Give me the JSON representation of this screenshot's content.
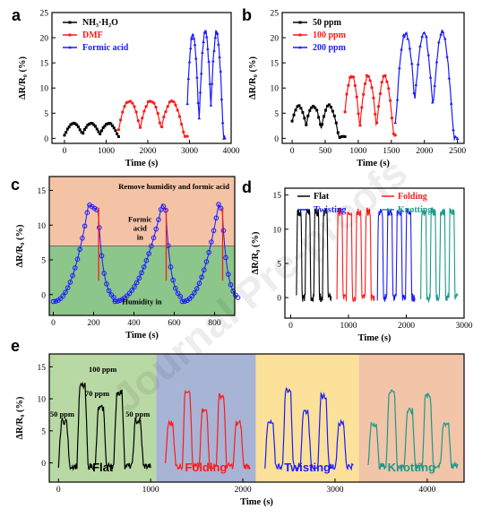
{
  "chart_data": [
    {
      "panel": "a",
      "type": "line",
      "xlabel": "Time (s)",
      "ylabel": "ΔR/R₀ (%)",
      "xlim": [
        -300,
        4000
      ],
      "ylim": [
        -1,
        25
      ],
      "xticks": [
        0,
        1000,
        2000,
        3000,
        4000
      ],
      "yticks": [
        0,
        5,
        10,
        15,
        20,
        25
      ],
      "series": [
        {
          "name": "NH₃·H₂O",
          "color": "#000000",
          "marker": "square",
          "x": [
            0,
            1300
          ],
          "peaks_x": [
            220,
            640,
            1060
          ],
          "peak_y": 3
        },
        {
          "name": "DMF",
          "color": "#ff1a1a",
          "marker": "circle",
          "x": [
            1300,
            2950
          ],
          "peaks_x": [
            1560,
            2070,
            2580
          ],
          "peak_y": 7.5
        },
        {
          "name": "Formic acid",
          "color": "#1a1aff",
          "marker": "triangle",
          "x": [
            2950,
            3850
          ],
          "peaks_x": [
            3080,
            3380,
            3650
          ],
          "peak_y": 21
        }
      ]
    },
    {
      "panel": "b",
      "type": "line",
      "xlabel": "Time (s)",
      "ylabel": "ΔR/R₀ (%)",
      "xlim": [
        -150,
        2600
      ],
      "ylim": [
        -1,
        25
      ],
      "xticks": [
        0,
        500,
        1000,
        1500,
        2000,
        2500
      ],
      "yticks": [
        0,
        5,
        10,
        15,
        20,
        25
      ],
      "series": [
        {
          "name": "50 ppm",
          "color": "#000000",
          "marker": "square",
          "x": [
            0,
            800
          ],
          "peaks_x": [
            100,
            320,
            560
          ],
          "peak_y": 6.5
        },
        {
          "name": "100 ppm",
          "color": "#ff1a1a",
          "marker": "circle",
          "x": [
            800,
            1560
          ],
          "peaks_x": [
            900,
            1150,
            1400
          ],
          "peak_y": 12.5
        },
        {
          "name": "200 ppm",
          "color": "#1a1aff",
          "marker": "triangle",
          "x": [
            1560,
            2500
          ],
          "peaks_x": [
            1720,
            1990,
            2270
          ],
          "peak_y": 21
        }
      ]
    },
    {
      "panel": "c",
      "type": "line",
      "xlabel": "Time (s)",
      "ylabel": "ΔR/R₀ (%)",
      "xlim": [
        -20,
        900
      ],
      "ylim": [
        -3,
        17
      ],
      "xticks": [
        0,
        200,
        400,
        600,
        800
      ],
      "yticks": [
        0,
        5,
        10,
        15
      ],
      "regions": [
        {
          "label": "Remove humidity and formic acid",
          "color": "#f4c3a5"
        },
        {
          "label": "Humidity in",
          "color": "#8cc68a"
        }
      ],
      "annotations": [
        "Remove humidity and formic acid",
        "Formic acid in",
        "Humidity in"
      ],
      "boundary_y": 7
    },
    {
      "panel": "d",
      "type": "line",
      "xlabel": "Time (s)",
      "ylabel": "ΔR/R₀ (%)",
      "xlim": [
        -100,
        3000
      ],
      "ylim": [
        -3,
        16
      ],
      "xticks": [
        0,
        1000,
        2000,
        3000
      ],
      "yticks": [
        0,
        5,
        10,
        15
      ],
      "series": [
        {
          "name": "Flat",
          "color": "#000000",
          "x": [
            100,
            700
          ]
        },
        {
          "name": "Folding",
          "color": "#ff1a1a",
          "x": [
            800,
            1450
          ]
        },
        {
          "name": "Twisting",
          "color": "#1a1aff",
          "x": [
            1500,
            2150
          ]
        },
        {
          "name": "Knotting",
          "color": "#1a9a8a",
          "x": [
            2250,
            2900
          ]
        }
      ],
      "peak_y": 12.5
    },
    {
      "panel": "e",
      "type": "line",
      "xlabel": "Time (s)",
      "ylabel": "ΔR/R₀ (%)",
      "xlim": [
        -100,
        4400
      ],
      "ylim": [
        -3,
        17
      ],
      "xticks": [
        0,
        1000,
        2000,
        3000,
        4000
      ],
      "yticks": [
        0,
        5,
        10,
        15
      ],
      "regions": [
        {
          "label": "Flat",
          "color": "#b9d9a4",
          "x": [
            -100,
            1060
          ]
        },
        {
          "label": "Folding",
          "color": "#a8b4d6",
          "x": [
            1060,
            2140
          ]
        },
        {
          "label": "Twisting",
          "color": "#fbe19a",
          "x": [
            2140,
            3260
          ]
        },
        {
          "label": "Knotting",
          "color": "#f2c4a8",
          "x": [
            3260,
            4400
          ]
        }
      ],
      "annotations": [
        "50 ppm",
        "100 ppm",
        "70 ppm",
        "50 ppm"
      ],
      "peak_values": [
        7,
        12.5,
        9,
        11.5,
        7
      ]
    }
  ],
  "watermark": "Journal Pre-proofs"
}
